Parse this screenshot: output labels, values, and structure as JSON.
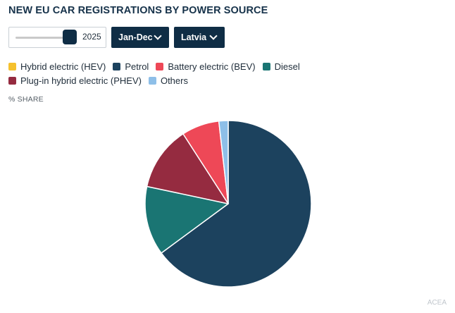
{
  "title": "NEW EU CAR REGISTRATIONS BY POWER SOURCE",
  "controls": {
    "year": "2025",
    "period": "Jan-Dec",
    "country": "Latvia"
  },
  "share_label": "% SHARE",
  "source": "ACEA",
  "chart_data": {
    "type": "pie",
    "title": "NEW EU CAR REGISTRATIONS BY POWER SOURCE",
    "legend": "top",
    "slices": [
      {
        "label": "Hybrid electric (HEV)",
        "value": 0,
        "color": "#f5c12e"
      },
      {
        "label": "Petrol",
        "value": 64.7,
        "color": "#1c425e"
      },
      {
        "label": "Diesel",
        "value": 13.4,
        "color": "#1a7573"
      },
      {
        "label": "Plug-in hybrid electric (PHEV)",
        "value": 12.5,
        "color": "#952b40"
      },
      {
        "label": "Battery electric (BEV)",
        "value": 7.3,
        "color": "#ee4857"
      },
      {
        "label": "Others",
        "value": 1.8,
        "color": "#8ebfe8"
      }
    ],
    "legend_order": [
      "Hybrid electric (HEV)",
      "Petrol",
      "Battery electric (BEV)",
      "Diesel",
      "Plug-in hybrid electric (PHEV)",
      "Others"
    ]
  }
}
